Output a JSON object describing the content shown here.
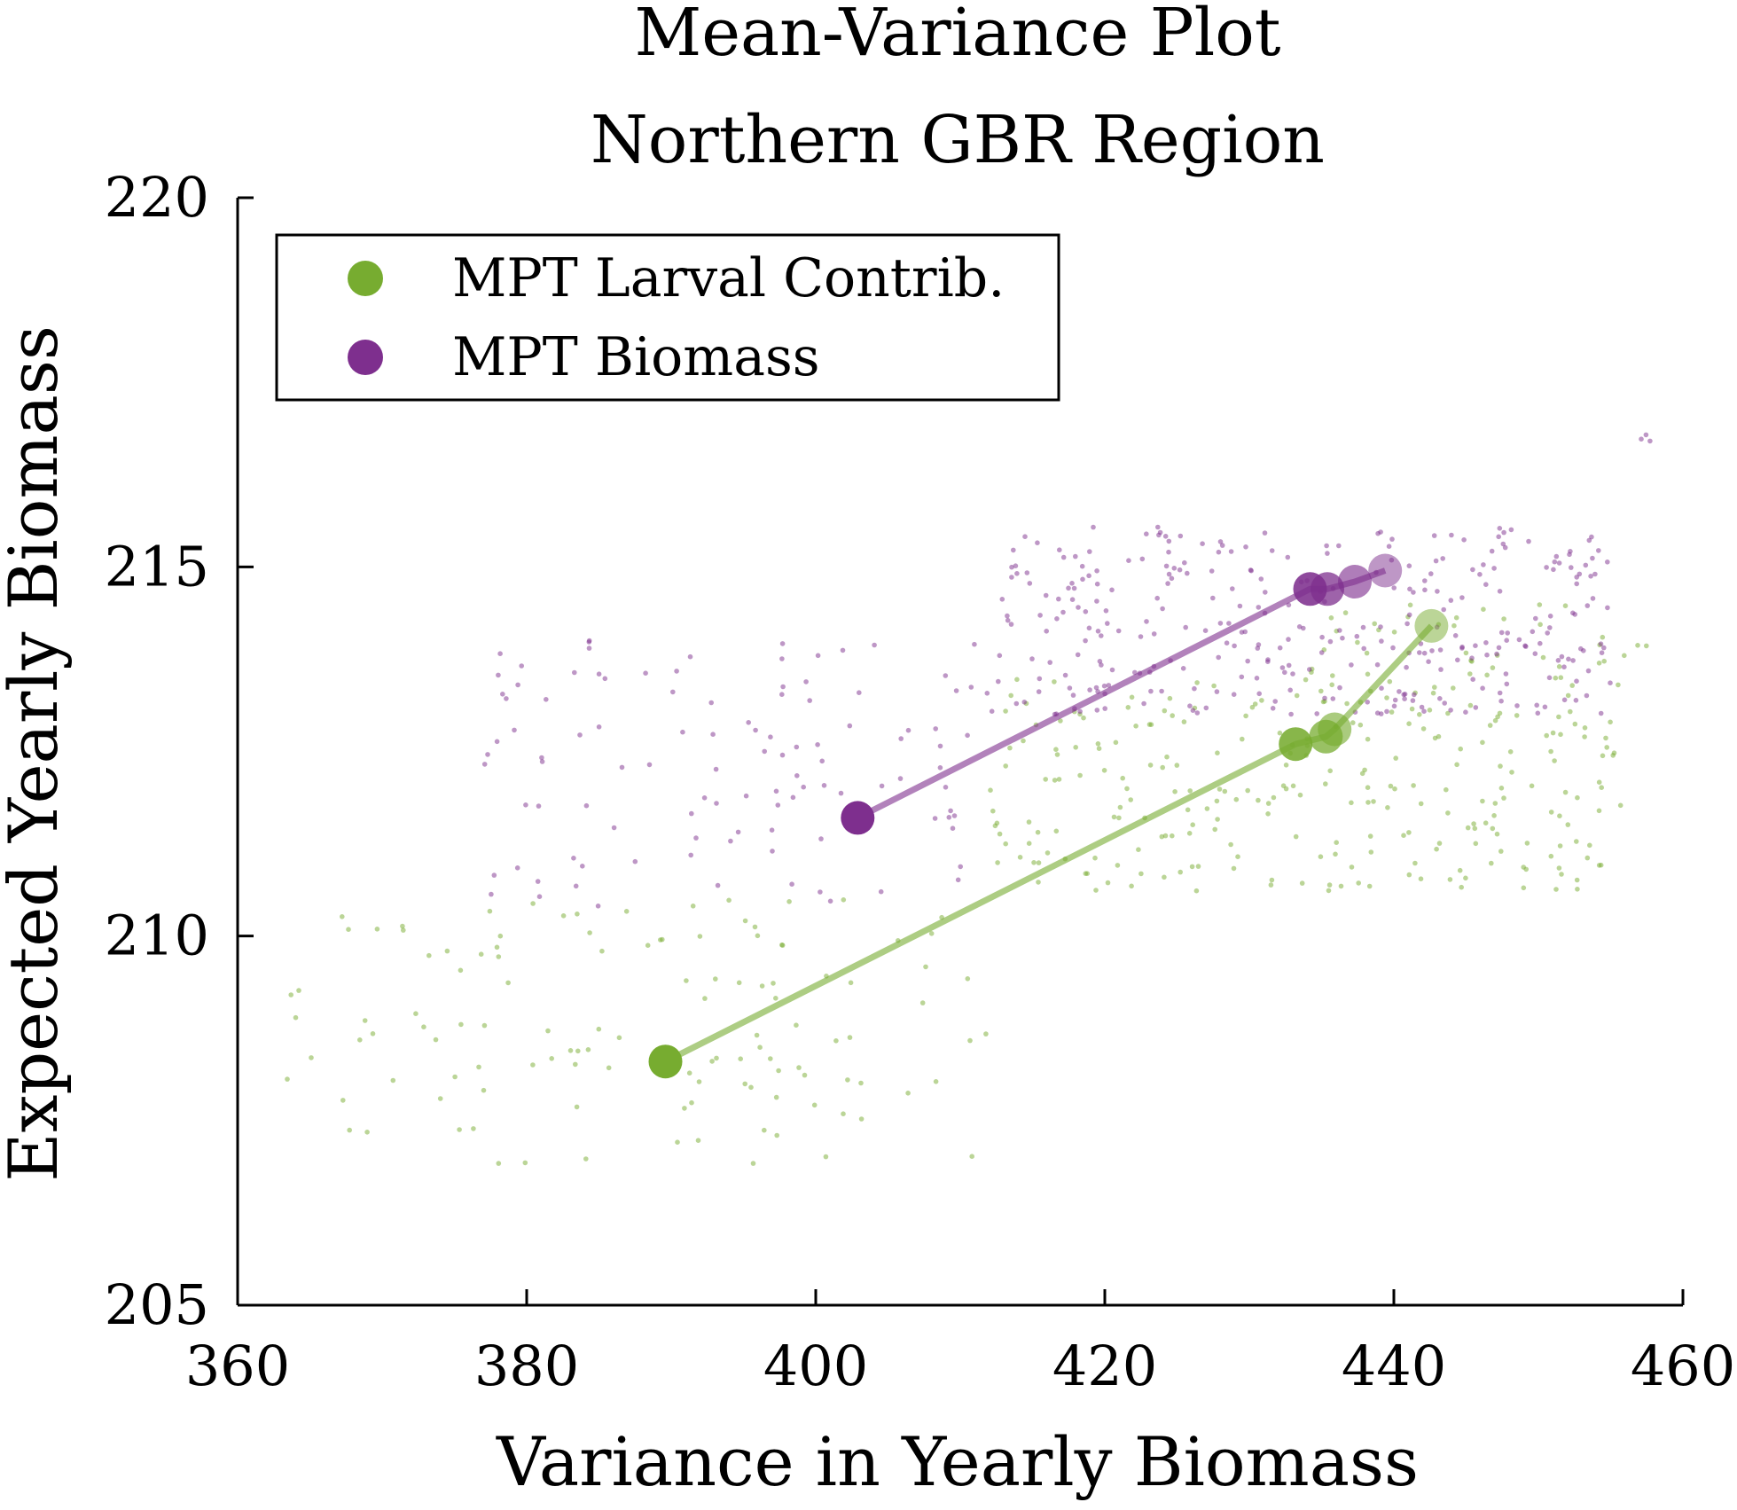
{
  "chart_data": {
    "type": "scatter",
    "title": "Mean-Variance Plot",
    "subtitle": "Northern GBR Region",
    "xlabel": "Variance in Yearly Biomass",
    "ylabel": "Expected Yearly Biomass",
    "xlim": [
      360,
      460
    ],
    "ylim": [
      205,
      220
    ],
    "xticks": [
      360,
      380,
      400,
      420,
      440,
      460
    ],
    "yticks": [
      205,
      210,
      215,
      220
    ],
    "xtick_labels": [
      "360",
      "380",
      "400",
      "420",
      "440",
      "460"
    ],
    "ytick_labels": [
      "205",
      "210",
      "215",
      "220"
    ],
    "grid": false,
    "legend_position": "top-left",
    "series": [
      {
        "name": "MPT Larval Contrib.",
        "color": "#77ac30",
        "frontier": [
          {
            "x": 389.6,
            "y": 208.3
          },
          {
            "x": 433.2,
            "y": 212.6
          },
          {
            "x": 435.3,
            "y": 212.7
          },
          {
            "x": 435.9,
            "y": 212.8
          },
          {
            "x": 442.6,
            "y": 214.2
          }
        ],
        "cloud_regions": [
          {
            "x_range": [
              363,
              412
            ],
            "y_range": [
              206.9,
              210.5
            ]
          },
          {
            "x_range": [
              412,
              456
            ],
            "y_range": [
              210.6,
              213.5
            ]
          },
          {
            "x_range": [
              434,
              458
            ],
            "y_range": [
              213.5,
              214.6
            ]
          }
        ]
      },
      {
        "name": "MPT Biomass",
        "color": "#7e2f8e",
        "frontier": [
          {
            "x": 402.9,
            "y": 211.6
          },
          {
            "x": 434.2,
            "y": 214.7
          },
          {
            "x": 435.4,
            "y": 214.7
          },
          {
            "x": 437.3,
            "y": 214.8
          },
          {
            "x": 439.4,
            "y": 214.95
          }
        ],
        "cloud_regions": [
          {
            "x_range": [
              377,
              412
            ],
            "y_range": [
              210.4,
              214.1
            ]
          },
          {
            "x_range": [
              412,
              455
            ],
            "y_range": [
              213.0,
              215.55
            ]
          },
          {
            "x_range": [
              457,
              458
            ],
            "y_range": [
              216.7,
              216.8
            ]
          }
        ]
      }
    ]
  }
}
